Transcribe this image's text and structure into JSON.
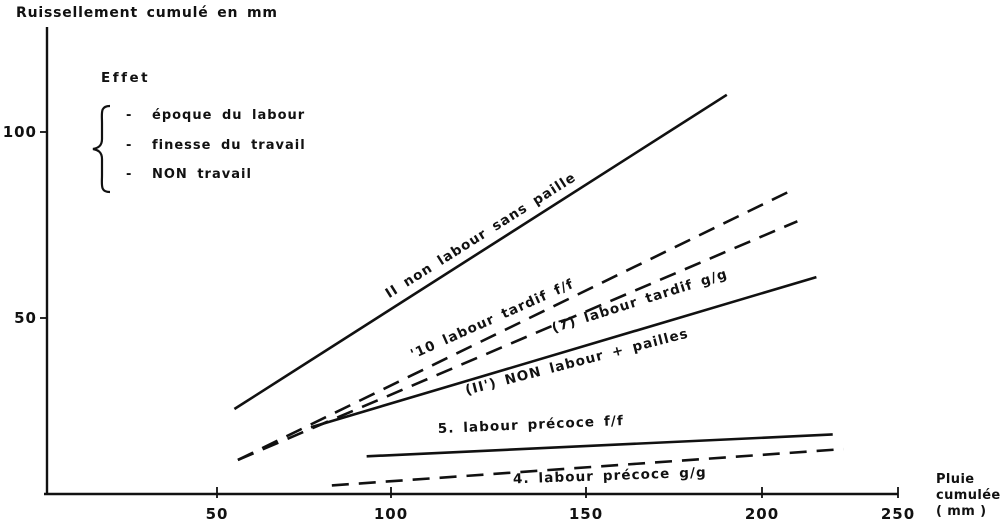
{
  "title": "Ruissellement cumulé en mm",
  "legend": {
    "title": "Effet",
    "bullet": "-",
    "items": [
      "époque du labour",
      "finesse du travail",
      "NON travail"
    ]
  },
  "x_axis_label": [
    "Pluie",
    "cumulée",
    "( mm )"
  ],
  "chart_data": {
    "type": "line",
    "title": "Ruissellement cumulé en mm",
    "xlabel": "Pluie cumulée (mm)",
    "ylabel": "Ruissellement cumulé en mm",
    "xlim": [
      0,
      255
    ],
    "ylim": [
      0,
      128
    ],
    "x_ticks": [
      50,
      100,
      150,
      200,
      250
    ],
    "y_ticks": [
      50,
      100
    ],
    "grid": false,
    "legend_position": "upper-left",
    "legend_note": "Effet : époque du labour, finesse du travail, NON travail",
    "series": [
      {
        "name": "II non labour sans paille",
        "line_style": "solid",
        "x": [
          55,
          190
        ],
        "y": [
          25,
          110
        ]
      },
      {
        "name": "'10 labour tardif f/f",
        "line_style": "dashed",
        "x": [
          56,
          210
        ],
        "y": [
          11,
          84
        ]
      },
      {
        "name": "(7) labour tardif g/g",
        "line_style": "dashed",
        "x": [
          56,
          213
        ],
        "y": [
          11,
          76
        ]
      },
      {
        "name": "(II') NON labour + pailles",
        "line_style": "solid",
        "x": [
          77,
          220
        ],
        "y": [
          20,
          61
        ]
      },
      {
        "name": "5. labour précoce f/f",
        "line_style": "solid",
        "x": [
          93,
          226
        ],
        "y": [
          12,
          18
        ]
      },
      {
        "name": "4. labour précoce g/g",
        "line_style": "dashed",
        "x": [
          83,
          230
        ],
        "y": [
          4,
          14
        ]
      }
    ]
  }
}
